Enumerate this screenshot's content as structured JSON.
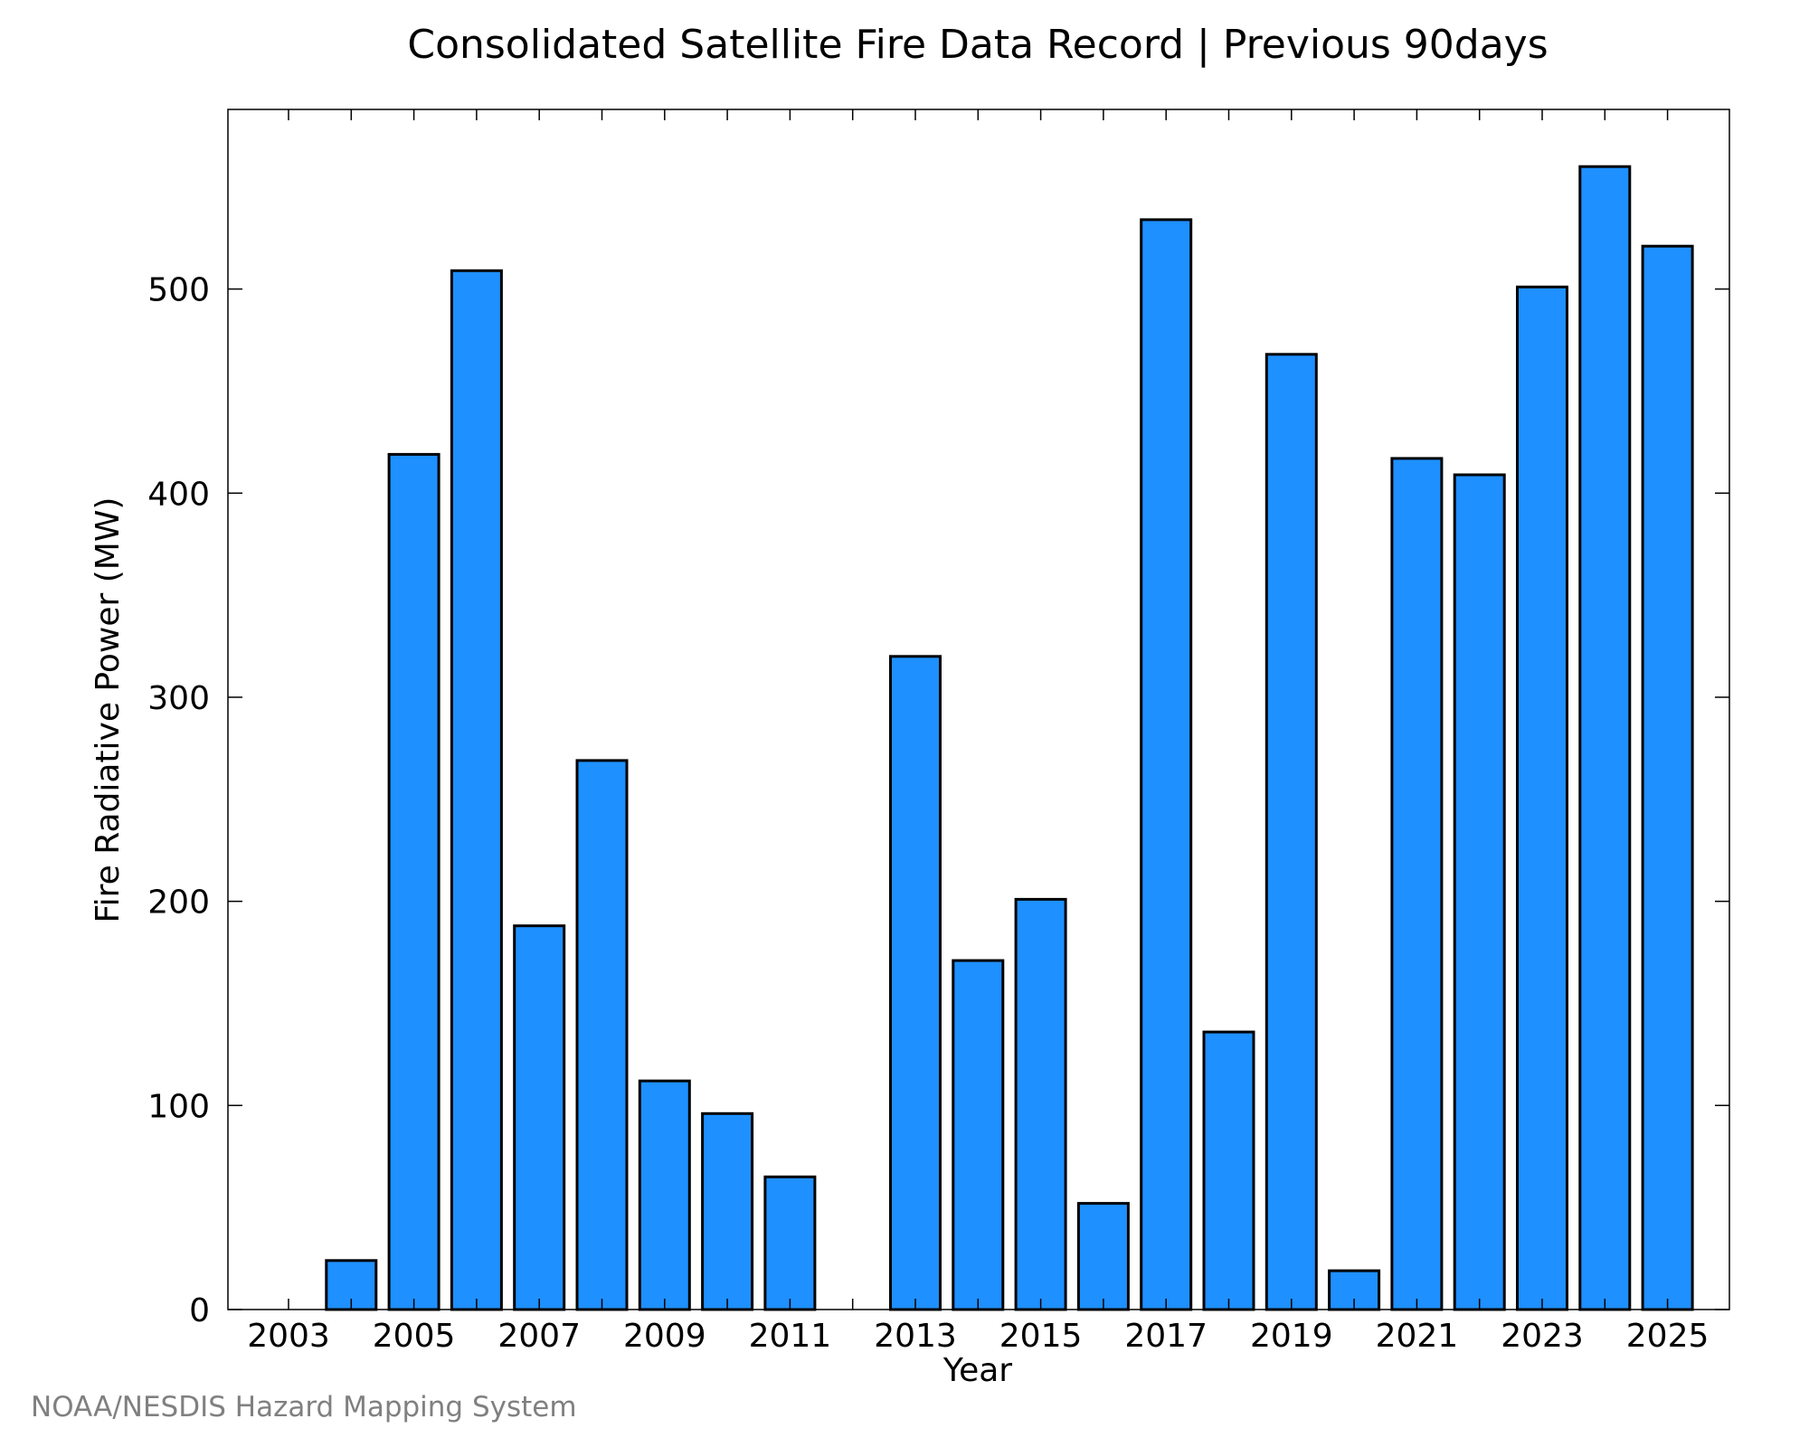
{
  "chart_data": {
    "type": "bar",
    "title": "Consolidated Satellite Fire Data Record | Previous 90days",
    "xlabel": "Year",
    "ylabel": "Fire Radiative Power (MW)",
    "categories": [
      "2003",
      "2004",
      "2005",
      "2006",
      "2007",
      "2008",
      "2009",
      "2010",
      "2011",
      "2012",
      "2013",
      "2014",
      "2015",
      "2016",
      "2017",
      "2018",
      "2019",
      "2020",
      "2021",
      "2022",
      "2023",
      "2024",
      "2025"
    ],
    "values": [
      0,
      24,
      419,
      509,
      188,
      269,
      112,
      96,
      65,
      0,
      320,
      171,
      201,
      52,
      534,
      136,
      468,
      19,
      417,
      409,
      501,
      560,
      521
    ],
    "x_tick_labels": [
      "2003",
      "2005",
      "2007",
      "2009",
      "2011",
      "2013",
      "2015",
      "2017",
      "2019",
      "2021",
      "2023",
      "2025"
    ],
    "y_ticks": [
      0,
      100,
      200,
      300,
      400,
      500
    ],
    "ylim": [
      0,
      588
    ],
    "grid": false,
    "legend": "none",
    "bar_color": "#1e90ff",
    "edge_color": "#000000"
  },
  "footer": {
    "credit": "NOAA/NESDIS Hazard Mapping System"
  }
}
